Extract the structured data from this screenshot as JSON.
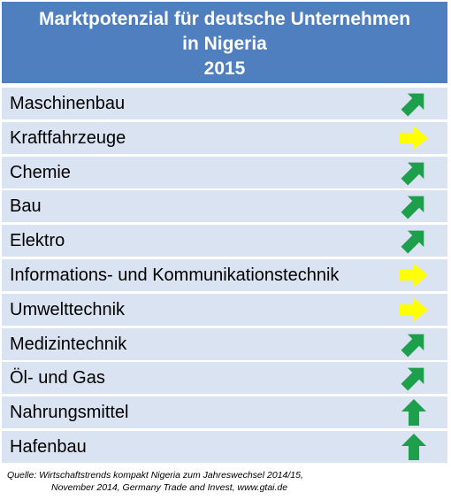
{
  "header": {
    "title_line1": "Marktpotenzial für deutsche Unternehmen",
    "title_line2": "in Nigeria",
    "title_line3": "2015"
  },
  "colors": {
    "header_bg": "#4f7fbf",
    "row_bg": "#dae3f1",
    "green": "#1e9f4c",
    "yellow": "#ffff00"
  },
  "rows": [
    {
      "label": "Maschinenbau",
      "trend": "up-right",
      "icon": "green-diagonal-arrow-icon"
    },
    {
      "label": "Kraftfahrzeuge",
      "trend": "right",
      "icon": "yellow-right-arrow-icon"
    },
    {
      "label": "Chemie",
      "trend": "up-right",
      "icon": "green-diagonal-arrow-icon"
    },
    {
      "label": "Bau",
      "trend": "up-right",
      "icon": "green-diagonal-arrow-icon"
    },
    {
      "label": "Elektro",
      "trend": "up-right",
      "icon": "green-diagonal-arrow-icon"
    },
    {
      "label": "Informations- und Kommunikationstechnik",
      "trend": "right",
      "icon": "yellow-right-arrow-icon"
    },
    {
      "label": "Umwelttechnik",
      "trend": "right",
      "icon": "yellow-right-arrow-icon"
    },
    {
      "label": "Medizintechnik",
      "trend": "up-right",
      "icon": "green-diagonal-arrow-icon"
    },
    {
      "label": "Öl- und Gas",
      "trend": "up-right",
      "icon": "green-diagonal-arrow-icon"
    },
    {
      "label": "Nahrungsmittel",
      "trend": "up",
      "icon": "green-up-arrow-icon"
    },
    {
      "label": "Hafenbau",
      "trend": "up",
      "icon": "green-up-arrow-icon"
    }
  ],
  "source": {
    "line1": "Quelle: Wirtschaftstrends kompakt Nigeria zum Jahreswechsel 2014/15,",
    "line2": "November 2014, Germany Trade and Invest, www.gtai.de"
  }
}
